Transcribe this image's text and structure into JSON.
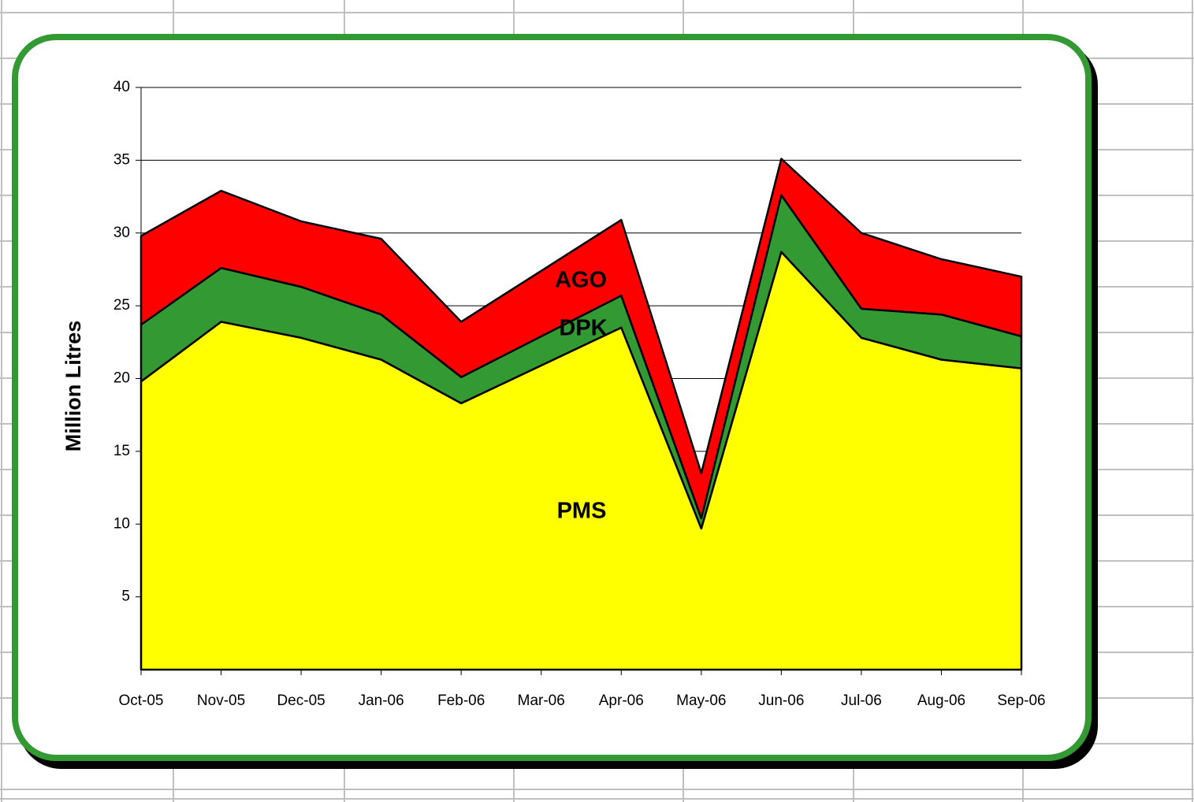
{
  "chart_data": {
    "type": "stacked_area",
    "y_label": "Million Litres",
    "categories": [
      "Oct-05",
      "Nov-05",
      "Dec-05",
      "Jan-06",
      "Feb-06",
      "Mar-06",
      "Apr-06",
      "May-06",
      "Jun-06",
      "Jul-06",
      "Aug-06",
      "Sep-06"
    ],
    "series": [
      {
        "name": "PMS",
        "color": "#ffff00",
        "values": [
          19.8,
          23.9,
          22.8,
          21.3,
          18.3,
          20.9,
          23.5,
          9.7,
          28.7,
          22.8,
          21.3,
          20.7
        ]
      },
      {
        "name": "DPK",
        "color": "#339933",
        "values": [
          3.9,
          3.7,
          3.5,
          3.1,
          1.8,
          2.0,
          2.2,
          0.7,
          3.9,
          2.0,
          3.1,
          2.2
        ]
      },
      {
        "name": "AGO",
        "color": "#ff0000",
        "values": [
          6.1,
          5.3,
          4.5,
          5.2,
          3.8,
          4.5,
          5.2,
          3.1,
          2.5,
          5.2,
          3.8,
          4.1
        ]
      }
    ],
    "ylim": [
      0,
      40
    ],
    "yticks": [
      5,
      10,
      15,
      20,
      25,
      30,
      35,
      40
    ],
    "grid": true
  }
}
